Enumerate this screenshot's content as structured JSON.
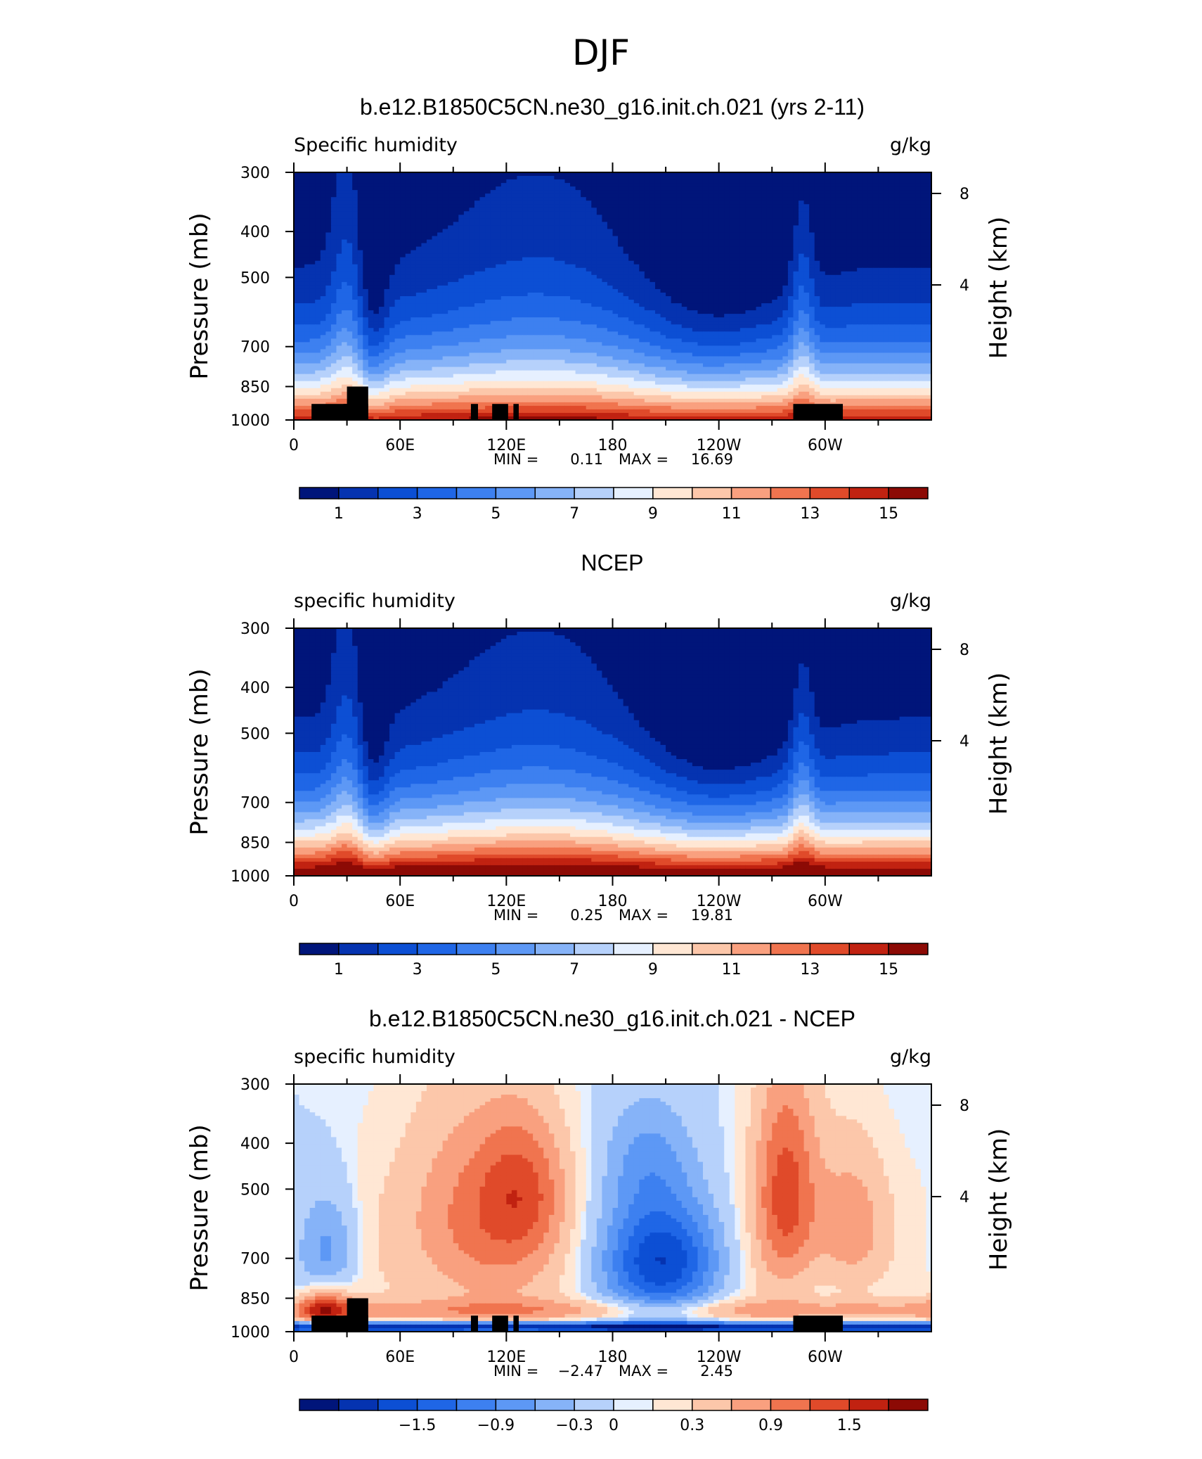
{
  "figure_title": "DJF",
  "chart_data": [
    {
      "type": "heatmap",
      "title": "b.e12.B1850C5CN.ne30_g16.init.ch.021 (yrs 2-11)",
      "left_label": "Specific humidity",
      "right_label": "g/kg",
      "xlabel": "",
      "ylabel": "Pressure (mb)",
      "ylabel_right": "Height (km)",
      "x_ticks": [
        "0",
        "60E",
        "120E",
        "180",
        "120W",
        "60W"
      ],
      "x_tick_values": [
        0,
        60,
        120,
        180,
        240,
        300
      ],
      "xlim": [
        0,
        360
      ],
      "y_ticks": [
        "300",
        "400",
        "500",
        "700",
        "850",
        "1000"
      ],
      "y_tick_values": [
        300,
        400,
        500,
        700,
        850,
        1000
      ],
      "ylim": [
        1000,
        300
      ],
      "y_right_ticks": [
        "8",
        "4"
      ],
      "y_right_tick_values": [
        8,
        4
      ],
      "stats": {
        "min_label": "MIN =",
        "min": "0.11",
        "max_label": "MAX =",
        "max": "16.69"
      },
      "colorbar": {
        "levels": [
          1,
          2,
          3,
          4,
          5,
          6,
          7,
          8,
          9,
          10,
          11,
          12,
          13,
          14,
          15
        ],
        "labels": [
          "1",
          "3",
          "5",
          "7",
          "9",
          "11",
          "13",
          "15"
        ],
        "label_values": [
          1,
          3,
          5,
          7,
          9,
          11,
          13,
          15
        ],
        "colors": [
          "#00157a",
          "#0533b0",
          "#0c4fd4",
          "#1f66e6",
          "#3d80f0",
          "#5d98f5",
          "#86b3f8",
          "#b6d1fb",
          "#e6f0ff",
          "#ffe7d4",
          "#fcc7aa",
          "#f9a07f",
          "#f0744f",
          "#e04a2a",
          "#c12211",
          "#8c0a05"
        ]
      },
      "field": {
        "model": "model",
        "min": 0.11,
        "max": 16.69
      }
    },
    {
      "type": "heatmap",
      "title": "NCEP",
      "left_label": "specific humidity",
      "right_label": "g/kg",
      "xlabel": "",
      "ylabel": "Pressure (mb)",
      "ylabel_right": "Height (km)",
      "x_ticks": [
        "0",
        "60E",
        "120E",
        "180",
        "120W",
        "60W"
      ],
      "x_tick_values": [
        0,
        60,
        120,
        180,
        240,
        300
      ],
      "xlim": [
        0,
        360
      ],
      "y_ticks": [
        "300",
        "400",
        "500",
        "700",
        "850",
        "1000"
      ],
      "y_tick_values": [
        300,
        400,
        500,
        700,
        850,
        1000
      ],
      "ylim": [
        1000,
        300
      ],
      "y_right_ticks": [
        "8",
        "4"
      ],
      "y_right_tick_values": [
        8,
        4
      ],
      "stats": {
        "min_label": "MIN =",
        "min": "0.25",
        "max_label": "MAX =",
        "max": "19.81"
      },
      "colorbar": {
        "levels": [
          1,
          2,
          3,
          4,
          5,
          6,
          7,
          8,
          9,
          10,
          11,
          12,
          13,
          14,
          15
        ],
        "labels": [
          "1",
          "3",
          "5",
          "7",
          "9",
          "11",
          "13",
          "15"
        ],
        "label_values": [
          1,
          3,
          5,
          7,
          9,
          11,
          13,
          15
        ],
        "colors": [
          "#00157a",
          "#0533b0",
          "#0c4fd4",
          "#1f66e6",
          "#3d80f0",
          "#5d98f5",
          "#86b3f8",
          "#b6d1fb",
          "#e6f0ff",
          "#ffe7d4",
          "#fcc7aa",
          "#f9a07f",
          "#f0744f",
          "#e04a2a",
          "#c12211",
          "#8c0a05"
        ]
      },
      "field": {
        "model": "obs",
        "min": 0.25,
        "max": 19.81
      }
    },
    {
      "type": "heatmap",
      "title": "b.e12.B1850C5CN.ne30_g16.init.ch.021 - NCEP",
      "left_label": "specific humidity",
      "right_label": "g/kg",
      "xlabel": "",
      "ylabel": "Pressure (mb)",
      "ylabel_right": "Height (km)",
      "x_ticks": [
        "0",
        "60E",
        "120E",
        "180",
        "120W",
        "60W"
      ],
      "x_tick_values": [
        0,
        60,
        120,
        180,
        240,
        300
      ],
      "xlim": [
        0,
        360
      ],
      "y_ticks": [
        "300",
        "400",
        "500",
        "700",
        "850",
        "1000"
      ],
      "y_tick_values": [
        300,
        400,
        500,
        700,
        850,
        1000
      ],
      "ylim": [
        1000,
        300
      ],
      "y_right_ticks": [
        "8",
        "4"
      ],
      "y_right_tick_values": [
        8,
        4
      ],
      "stats": {
        "min_label": "MIN =",
        "min": "−2.47",
        "max_label": "MAX =",
        "max": "2.45"
      },
      "colorbar": {
        "levels": [
          -2.1,
          -1.8,
          -1.5,
          -1.2,
          -0.9,
          -0.6,
          -0.3,
          0,
          0.1,
          0.3,
          0.6,
          0.9,
          1.2,
          1.5,
          1.8
        ],
        "labels": [
          "−1.5",
          "−0.9",
          "−0.3",
          "0",
          "0.3",
          "0.9",
          "1.5"
        ],
        "label_values": [
          -1.5,
          -0.9,
          -0.3,
          0,
          0.3,
          0.9,
          1.5
        ],
        "colors": [
          "#00157a",
          "#0533b0",
          "#0c4fd4",
          "#1f66e6",
          "#3d80f0",
          "#5d98f5",
          "#86b3f8",
          "#b6d1fb",
          "#e6f0ff",
          "#ffe7d4",
          "#fcc7aa",
          "#f9a07f",
          "#f0744f",
          "#e04a2a",
          "#c12211",
          "#8c0a05"
        ]
      },
      "field": {
        "model": "diff",
        "min": -2.47,
        "max": 2.45
      }
    }
  ],
  "terrain_blocks_lon_pmin": [
    [
      10,
      30,
      925
    ],
    [
      30,
      42,
      850
    ],
    [
      28,
      42,
      925
    ],
    [
      100,
      104,
      925
    ],
    [
      112,
      121,
      925
    ],
    [
      124,
      127,
      925
    ],
    [
      282,
      310,
      925
    ]
  ]
}
